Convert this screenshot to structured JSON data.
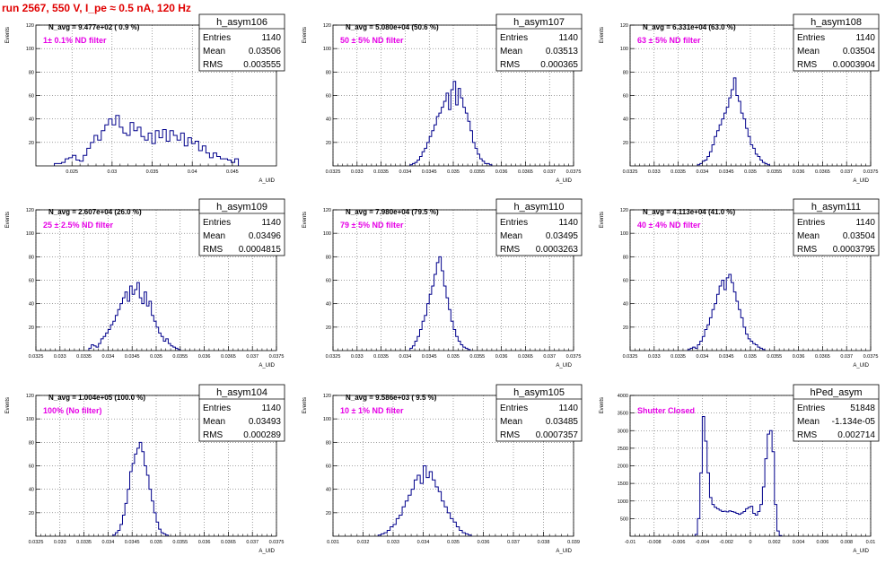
{
  "page": {
    "title": "run 2567,   550 V, I_pe ≈ 0.5 nA, 120 Hz"
  },
  "chart_data": [
    {
      "type": "bar",
      "name": "h_asym106",
      "entries": "1140",
      "mean": "0.03506",
      "rms": "0.003555",
      "n_avg": "N_avg = 9.477e+02 ( 0.9 %)",
      "annotation": "1± 0.1% ND filter",
      "annotation_color": "#e600e6",
      "xlim": [
        0.0205,
        0.0505
      ],
      "ylim": [
        0,
        120
      ],
      "xticks": [
        "0.025",
        "0.03",
        "0.035",
        "0.04",
        "0.045"
      ],
      "xtick_values": [
        0.025,
        0.03,
        0.035,
        0.04,
        0.045
      ],
      "yticks": [
        "20",
        "40",
        "60",
        "80",
        "100",
        "120"
      ],
      "ylabel": "Events",
      "xlabel": "A_UID",
      "bin_start": 0.0228,
      "bin_width": 0.00045,
      "values": [
        2,
        2,
        3,
        6,
        7,
        9,
        5,
        4,
        9,
        15,
        20,
        26,
        22,
        30,
        35,
        40,
        35,
        43,
        33,
        28,
        26,
        37,
        30,
        33,
        25,
        22,
        28,
        19,
        30,
        24,
        31,
        21,
        30,
        26,
        22,
        28,
        17,
        24,
        19,
        21,
        13,
        17,
        11,
        7,
        11,
        8,
        6,
        6,
        5,
        3,
        6
      ]
    },
    {
      "type": "bar",
      "name": "h_asym107",
      "entries": "1140",
      "mean": "0.03513",
      "rms": "0.000365",
      "n_avg": "N_avg = 5.080e+04 (50.6 %)",
      "annotation": "50 ± 5% ND filter",
      "annotation_color": "#e600e6",
      "xlim": [
        0.0325,
        0.0375
      ],
      "ylim": [
        0,
        120
      ],
      "xticks": [
        "0.0325",
        "0.033",
        "0.0335",
        "0.034",
        "0.0345",
        "0.035",
        "0.0355",
        "0.036",
        "0.0365",
        "0.037",
        "0.0375"
      ],
      "xtick_values": [
        0.0325,
        0.033,
        0.0335,
        0.034,
        0.0345,
        0.035,
        0.0355,
        0.036,
        0.0365,
        0.037,
        0.0375
      ],
      "yticks": [
        "20",
        "40",
        "60",
        "80",
        "100",
        "120"
      ],
      "ylabel": "Events",
      "xlabel": "A_UID",
      "bin_start": 0.0341,
      "bin_width": 5e-05,
      "values": [
        1,
        2,
        3,
        5,
        8,
        12,
        15,
        20,
        25,
        30,
        35,
        42,
        45,
        50,
        55,
        62,
        48,
        65,
        72,
        52,
        66,
        58,
        50,
        45,
        38,
        30,
        20,
        15,
        10,
        6,
        4,
        2,
        2,
        1
      ]
    },
    {
      "type": "bar",
      "name": "h_asym108",
      "entries": "1140",
      "mean": "0.03504",
      "rms": "0.0003904",
      "n_avg": "N_avg = 6.331e+04 (63.0 %)",
      "annotation": "63 ± 5% ND filter",
      "annotation_color": "#e600e6",
      "xlim": [
        0.0325,
        0.0375
      ],
      "ylim": [
        0,
        120
      ],
      "xticks": [
        "0.0325",
        "0.033",
        "0.0335",
        "0.034",
        "0.0345",
        "0.035",
        "0.0355",
        "0.036",
        "0.0365",
        "0.037",
        "0.0375"
      ],
      "xtick_values": [
        0.0325,
        0.033,
        0.0335,
        0.034,
        0.0345,
        0.035,
        0.0355,
        0.036,
        0.0365,
        0.037,
        0.0375
      ],
      "yticks": [
        "20",
        "40",
        "60",
        "80",
        "100",
        "120"
      ],
      "ylabel": "Events",
      "xlabel": "A_UID",
      "bin_start": 0.0339,
      "bin_width": 5e-05,
      "values": [
        1,
        2,
        4,
        5,
        8,
        12,
        18,
        25,
        30,
        35,
        40,
        45,
        50,
        58,
        65,
        75,
        60,
        55,
        45,
        40,
        32,
        25,
        18,
        15,
        10,
        8,
        5,
        3,
        2,
        1
      ]
    },
    {
      "type": "bar",
      "name": "h_asym109",
      "entries": "1140",
      "mean": "0.03496",
      "rms": "0.0004815",
      "n_avg": "N_avg = 2.607e+04 (26.0 %)",
      "annotation": "25 ± 2.5% ND filter",
      "annotation_color": "#e600e6",
      "xlim": [
        0.0325,
        0.0375
      ],
      "ylim": [
        0,
        120
      ],
      "xticks": [
        "0.0325",
        "0.033",
        "0.0335",
        "0.034",
        "0.0345",
        "0.035",
        "0.0355",
        "0.036",
        "0.0365",
        "0.037",
        "0.0375"
      ],
      "xtick_values": [
        0.0325,
        0.033,
        0.0335,
        0.034,
        0.0345,
        0.035,
        0.0355,
        0.036,
        0.0365,
        0.037,
        0.0375
      ],
      "yticks": [
        "20",
        "40",
        "60",
        "80",
        "100",
        "120"
      ],
      "ylabel": "Events",
      "xlabel": "A_UID",
      "bin_start": 0.0336,
      "bin_width": 5e-05,
      "values": [
        2,
        5,
        4,
        3,
        6,
        10,
        12,
        15,
        18,
        22,
        25,
        30,
        35,
        40,
        45,
        50,
        42,
        55,
        48,
        52,
        58,
        45,
        40,
        50,
        38,
        42,
        30,
        25,
        20,
        15,
        12,
        8,
        10,
        6,
        4,
        3,
        2,
        1
      ]
    },
    {
      "type": "bar",
      "name": "h_asym110",
      "entries": "1140",
      "mean": "0.03495",
      "rms": "0.0003263",
      "n_avg": "N_avg = 7.980e+04 (79.5 %)",
      "annotation": "79 ± 5% ND filter",
      "annotation_color": "#e600e6",
      "xlim": [
        0.0325,
        0.0375
      ],
      "ylim": [
        0,
        120
      ],
      "xticks": [
        "0.0325",
        "0.033",
        "0.0335",
        "0.034",
        "0.0345",
        "0.035",
        "0.0355",
        "0.036",
        "0.0365",
        "0.037",
        "0.0375"
      ],
      "xtick_values": [
        0.0325,
        0.033,
        0.0335,
        0.034,
        0.0345,
        0.035,
        0.0355,
        0.036,
        0.0365,
        0.037,
        0.0375
      ],
      "yticks": [
        "20",
        "40",
        "60",
        "80",
        "100",
        "120"
      ],
      "ylabel": "Events",
      "xlabel": "A_UID",
      "bin_start": 0.0341,
      "bin_width": 5e-05,
      "values": [
        2,
        4,
        8,
        12,
        18,
        25,
        30,
        40,
        48,
        55,
        65,
        75,
        80,
        68,
        55,
        45,
        35,
        25,
        18,
        12,
        8,
        5,
        3,
        2,
        1
      ]
    },
    {
      "type": "bar",
      "name": "h_asym111",
      "entries": "1140",
      "mean": "0.03504",
      "rms": "0.0003795",
      "n_avg": "N_avg = 4.113e+04 (41.0 %)",
      "annotation": "40 ± 4% ND filter",
      "annotation_color": "#e600e6",
      "xlim": [
        0.0325,
        0.0375
      ],
      "ylim": [
        0,
        120
      ],
      "xticks": [
        "0.0325",
        "0.033",
        "0.0335",
        "0.034",
        "0.0345",
        "0.035",
        "0.0355",
        "0.036",
        "0.0365",
        "0.037",
        "0.0375"
      ],
      "xtick_values": [
        0.0325,
        0.033,
        0.0335,
        0.034,
        0.0345,
        0.035,
        0.0355,
        0.036,
        0.0365,
        0.037,
        0.0375
      ],
      "yticks": [
        "20",
        "40",
        "60",
        "80",
        "100",
        "120"
      ],
      "ylabel": "Events",
      "xlabel": "A_UID",
      "bin_start": 0.0337,
      "bin_width": 5e-05,
      "values": [
        1,
        2,
        3,
        2,
        5,
        8,
        12,
        18,
        22,
        28,
        35,
        40,
        48,
        55,
        60,
        52,
        62,
        65,
        58,
        50,
        42,
        35,
        28,
        20,
        14,
        10,
        8,
        6,
        5,
        3,
        2,
        1
      ]
    },
    {
      "type": "bar",
      "name": "h_asym104",
      "entries": "1140",
      "mean": "0.03493",
      "rms": "0.000289",
      "n_avg": "N_avg = 1.004e+05 (100.0 %)",
      "annotation": "100% (No filter)",
      "annotation_color": "#e600e6",
      "xlim": [
        0.0325,
        0.0375
      ],
      "ylim": [
        0,
        120
      ],
      "xticks": [
        "0.0325",
        "0.033",
        "0.0335",
        "0.034",
        "0.0345",
        "0.035",
        "0.0355",
        "0.036",
        "0.0365",
        "0.037",
        "0.0375"
      ],
      "xtick_values": [
        0.0325,
        0.033,
        0.0335,
        0.034,
        0.0345,
        0.035,
        0.0355,
        0.036,
        0.0365,
        0.037,
        0.0375
      ],
      "yticks": [
        "20",
        "40",
        "60",
        "80",
        "100",
        "120"
      ],
      "ylabel": "Events",
      "xlabel": "A_UID",
      "bin_start": 0.0341,
      "bin_width": 5e-05,
      "values": [
        1,
        3,
        5,
        10,
        18,
        28,
        40,
        55,
        62,
        70,
        75,
        80,
        72,
        60,
        52,
        40,
        30,
        20,
        12,
        6,
        3,
        2,
        1
      ]
    },
    {
      "type": "bar",
      "name": "h_asym105",
      "entries": "1140",
      "mean": "0.03485",
      "rms": "0.0007357",
      "n_avg": "N_avg = 9.586e+03 ( 9.5 %)",
      "annotation": "10 ± 1% ND filter",
      "annotation_color": "#e600e6",
      "xlim": [
        0.031,
        0.039
      ],
      "ylim": [
        0,
        120
      ],
      "xticks": [
        "0.031",
        "0.032",
        "0.033",
        "0.034",
        "0.035",
        "0.036",
        "0.037",
        "0.038",
        "0.039"
      ],
      "xtick_values": [
        0.031,
        0.032,
        0.033,
        0.034,
        0.035,
        0.036,
        0.037,
        0.038,
        0.039
      ],
      "yticks": [
        "20",
        "40",
        "60",
        "80",
        "100",
        "120"
      ],
      "ylabel": "Events",
      "xlabel": "A_UID",
      "bin_start": 0.0325,
      "bin_width": 0.0001,
      "values": [
        1,
        2,
        3,
        5,
        8,
        10,
        15,
        18,
        25,
        30,
        35,
        40,
        48,
        52,
        45,
        60,
        50,
        55,
        48,
        42,
        38,
        30,
        25,
        20,
        15,
        12,
        8,
        5,
        3,
        2,
        1
      ]
    },
    {
      "type": "bar",
      "name": "hPed_asym",
      "entries": "51848",
      "mean": "-1.134e-05",
      "rms": "0.002714",
      "n_avg": "",
      "annotation": "Shutter Closed",
      "annotation_color": "#e600e6",
      "xlim": [
        -0.01,
        0.01
      ],
      "ylim": [
        0,
        4000
      ],
      "xticks": [
        "-0.01",
        "-0.008",
        "-0.006",
        "-0.004",
        "-0.002",
        "0",
        "0.002",
        "0.004",
        "0.006",
        "0.008",
        "0.01"
      ],
      "xtick_values": [
        -0.01,
        -0.008,
        -0.006,
        -0.004,
        -0.002,
        0,
        0.002,
        0.004,
        0.006,
        0.008,
        0.01
      ],
      "yticks": [
        "500",
        "1000",
        "1500",
        "2000",
        "2500",
        "3000",
        "3500",
        "4000"
      ],
      "ylabel": "Events",
      "xlabel": "A_UID",
      "bin_start": -0.0046,
      "bin_width": 0.0002,
      "values": [
        50,
        500,
        1800,
        3400,
        2700,
        1800,
        1100,
        900,
        820,
        780,
        740,
        700,
        710,
        690,
        720,
        700,
        680,
        650,
        620,
        660,
        700,
        780,
        820,
        850,
        650,
        600,
        700,
        900,
        1400,
        2200,
        2900,
        3000,
        2400,
        900,
        150,
        20
      ]
    }
  ]
}
